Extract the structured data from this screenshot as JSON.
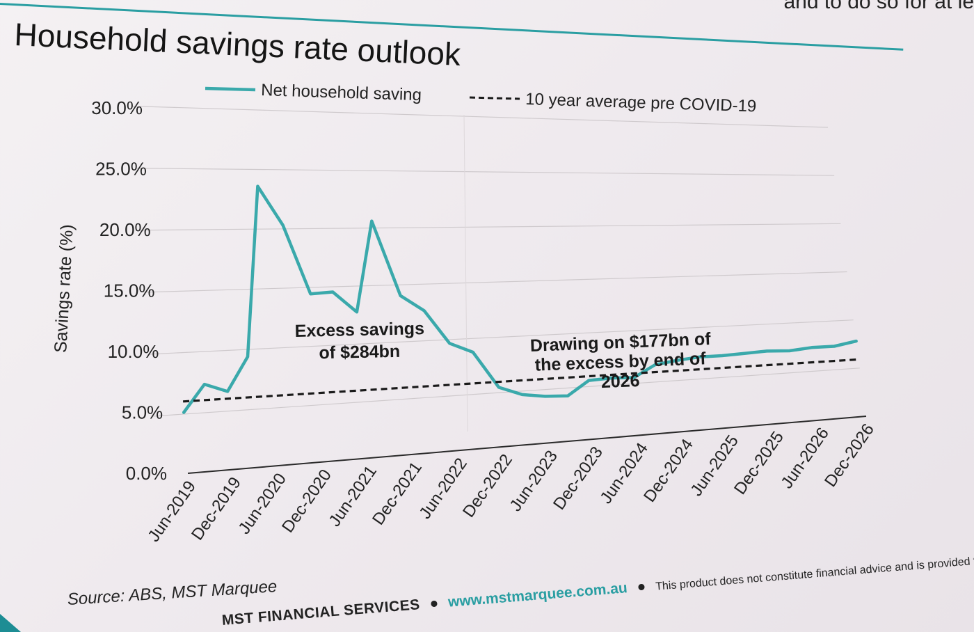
{
  "slide": {
    "title": "Household savings rate outlook",
    "corner_text": "and to do so for at le",
    "source": "Source: ABS, MST Marquee",
    "footer": {
      "company": "MST FINANCIAL SERVICES",
      "url": "www.mstmarquee.com.au",
      "disclaimer": "This product does not constitute financial advice and is provided for information purposes only."
    },
    "accent_color": "#2a9ea2"
  },
  "chart_data": {
    "type": "line",
    "title": "Household savings rate outlook",
    "ylabel": "Savings rate (%)",
    "xlabel": "",
    "ylim": [
      0,
      30
    ],
    "yticks": [
      "0.0%",
      "5.0%",
      "10.0%",
      "15.0%",
      "20.0%",
      "25.0%",
      "30.0%"
    ],
    "categories": [
      "Jun-2019",
      "Dec-2019",
      "Jun-2020",
      "Dec-2020",
      "Jun-2021",
      "Dec-2021",
      "Jun-2022",
      "Dec-2022",
      "Jun-2023",
      "Dec-2023",
      "Jun-2024",
      "Dec-2024",
      "Jun-2025",
      "Dec-2025",
      "Jun-2026",
      "Dec-2026"
    ],
    "grid": true,
    "legend_position": "top",
    "series": [
      {
        "name": "Net household saving",
        "style": "solid",
        "color": "#3aa9ab",
        "points": [
          {
            "x": "Jun-2019",
            "y": 5.0
          },
          {
            "x": "Sep-2019",
            "y": 7.2
          },
          {
            "x": "Dec-2019",
            "y": 6.5
          },
          {
            "x": "Mar-2020",
            "y": 9.3
          },
          {
            "x": "Jun-2020",
            "y": 23.6
          },
          {
            "x": "Sep-2020",
            "y": 20.3
          },
          {
            "x": "Dec-2020",
            "y": 14.4
          },
          {
            "x": "Mar-2021",
            "y": 14.5
          },
          {
            "x": "Jun-2021",
            "y": 12.7
          },
          {
            "x": "Sep-2021",
            "y": 20.6
          },
          {
            "x": "Dec-2021",
            "y": 14.0
          },
          {
            "x": "Mar-2022",
            "y": 12.6
          },
          {
            "x": "Jun-2022",
            "y": 9.6
          },
          {
            "x": "Sep-2022",
            "y": 8.7
          },
          {
            "x": "Dec-2022",
            "y": 5.4
          },
          {
            "x": "Mar-2023",
            "y": 4.6
          },
          {
            "x": "Jun-2023",
            "y": 4.3
          },
          {
            "x": "Sep-2023",
            "y": 4.2
          },
          {
            "x": "Dec-2023",
            "y": 5.5
          },
          {
            "x": "Mar-2024",
            "y": 5.6
          },
          {
            "x": "Jun-2024",
            "y": 5.5
          },
          {
            "x": "Sep-2024",
            "y": 6.6
          },
          {
            "x": "Dec-2024",
            "y": 6.9
          },
          {
            "x": "Mar-2025",
            "y": 7.1
          },
          {
            "x": "Jun-2025",
            "y": 7.1
          },
          {
            "x": "Sep-2025",
            "y": 7.2
          },
          {
            "x": "Dec-2025",
            "y": 7.3
          },
          {
            "x": "Mar-2026",
            "y": 7.2
          },
          {
            "x": "Jun-2026",
            "y": 7.4
          },
          {
            "x": "Sep-2026",
            "y": 7.4
          },
          {
            "x": "Dec-2026",
            "y": 7.8
          }
        ]
      },
      {
        "name": "10 year average pre COVID-19",
        "style": "dashed",
        "color": "#1a1a1a",
        "points": [
          {
            "x": "Jun-2019",
            "y": 5.9
          },
          {
            "x": "Dec-2026",
            "y": 5.9
          }
        ]
      }
    ],
    "annotations": [
      {
        "text_lines": [
          "Excess savings",
          "of $284bn"
        ]
      },
      {
        "text_lines": [
          "Drawing on $177bn of",
          "the excess by end  of",
          "2026"
        ]
      }
    ]
  }
}
